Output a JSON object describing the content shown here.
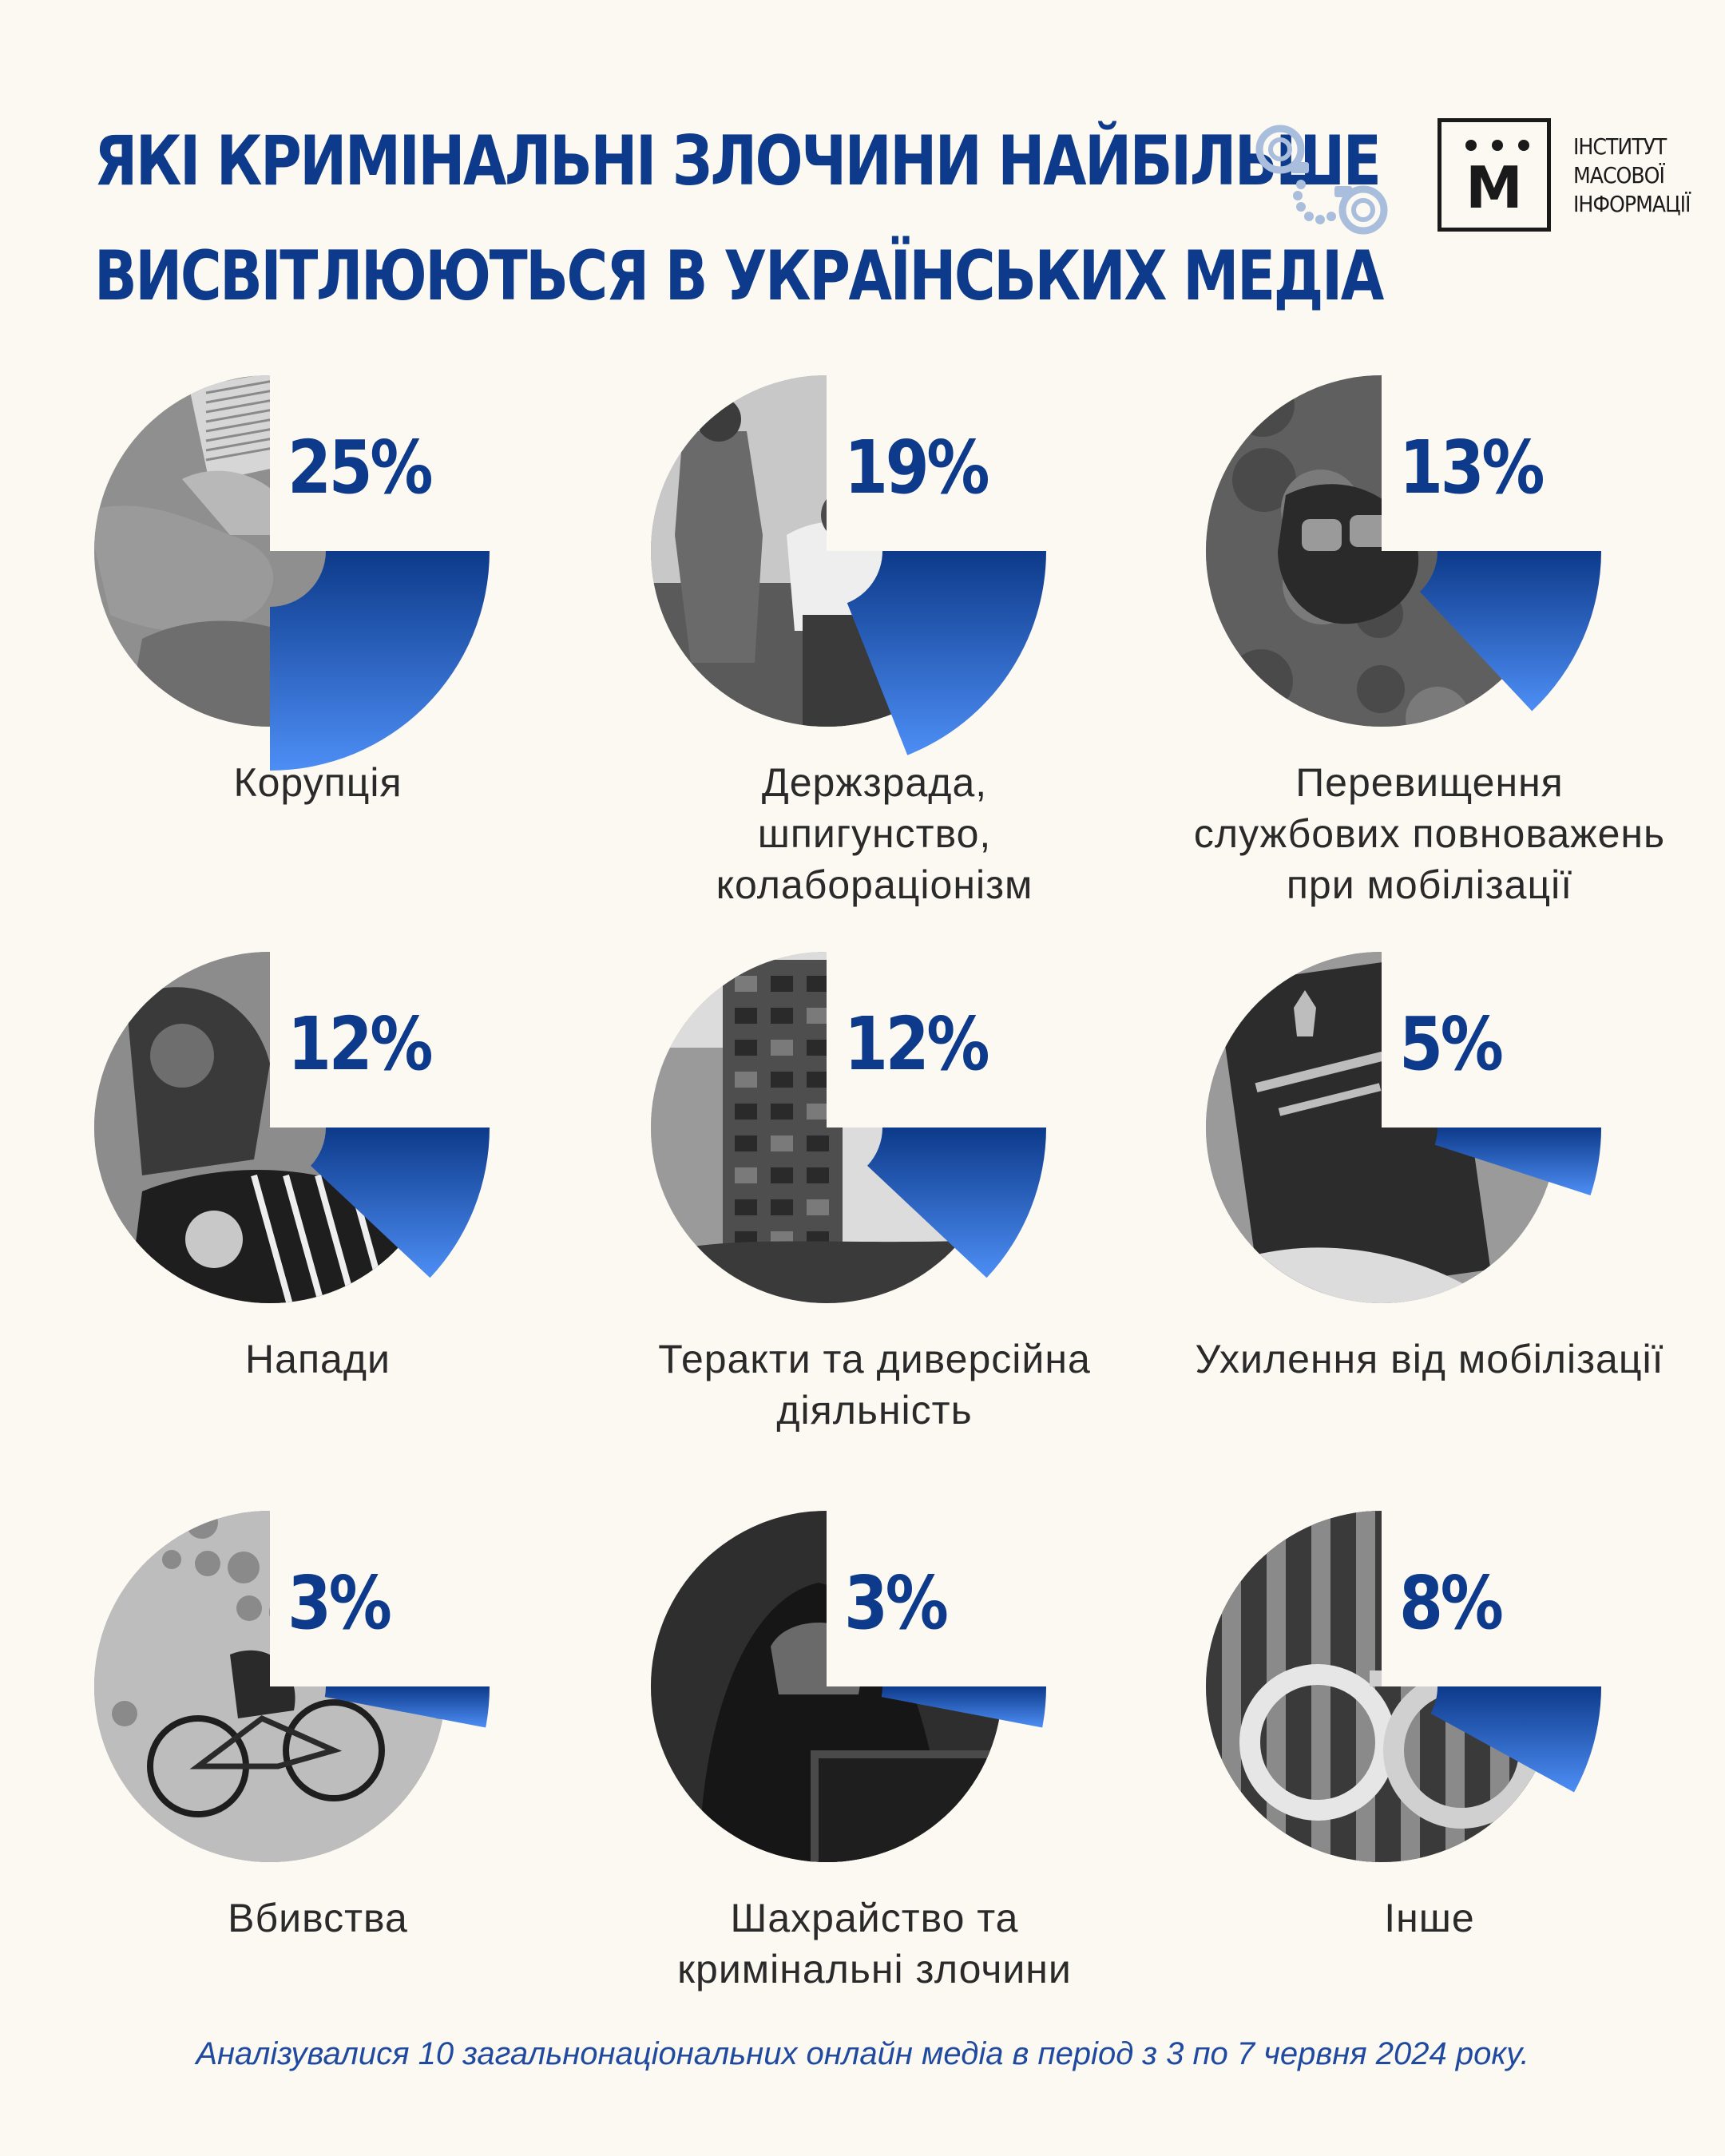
{
  "header": {
    "title_lines": [
      "ЯКІ КРИМІНАЛЬНІ ЗЛОЧИНИ НАЙБІЛЬШЕ",
      "ВИСВІТЛЮЮТЬСЯ В УКРАЇНСЬКИХ МЕДІА"
    ],
    "handcuffs_icon": "handcuffs-icon"
  },
  "logo": {
    "letter": "М",
    "text_lines": [
      "ІНСТИТУТ",
      "МАСОВОЇ",
      "ІНФОРМАЦІЇ"
    ]
  },
  "colors": {
    "title": "#0d3a8a",
    "wedge_dark": "#0d3a8a",
    "wedge_light": "#4d8ef5",
    "footnote": "#1f4aa0",
    "background": "#fcf9f2"
  },
  "chart_data": {
    "type": "pie",
    "unit": "%",
    "categories": [
      "Корупція",
      "Держзрада, шпигунство, колабораціонізм",
      "Перевищення службових повноважень при мобілізації",
      "Напади",
      "Теракти та диверсійна діяльність",
      "Ухилення від мобілізації",
      "Вбивства",
      "Шахрайство та кримінальні злочини",
      "Інше"
    ],
    "values": [
      25,
      19,
      13,
      12,
      12,
      5,
      3,
      3,
      8
    ],
    "items": [
      {
        "pct": "25%",
        "value": 25,
        "label_lines": [
          "Корупція"
        ],
        "image": "handshake-money-photo"
      },
      {
        "pct": "19%",
        "value": 19,
        "label_lines": [
          "Держзрада,",
          "шпигунство,",
          "колабораціонізм"
        ],
        "image": "detention-office-photo"
      },
      {
        "pct": "13%",
        "value": 13,
        "label_lines": [
          "Перевищення",
          "службових повноважень",
          "при мобілізації"
        ],
        "image": "soldier-glove-photo"
      },
      {
        "pct": "12%",
        "value": 12,
        "label_lines": [
          "Напади"
        ],
        "image": "assault-photo"
      },
      {
        "pct": "12%",
        "value": 12,
        "label_lines": [
          "Теракти та диверсійна",
          "діяльність"
        ],
        "image": "destroyed-building-photo"
      },
      {
        "pct": "5%",
        "value": 5,
        "label_lines": [
          "Ухилення від мобілізації"
        ],
        "image": "military-id-photo"
      },
      {
        "pct": "3%",
        "value": 3,
        "label_lines": [
          "Вбивства"
        ],
        "image": "fallen-bicycle-photo"
      },
      {
        "pct": "3%",
        "value": 3,
        "label_lines": [
          "Шахрайство та",
          "кримінальні злочини"
        ],
        "image": "hooded-hacker-photo"
      },
      {
        "pct": "8%",
        "value": 8,
        "label_lines": [
          "Інше"
        ],
        "image": "handcuffs-photo"
      }
    ]
  },
  "footnote": "Аналізувалися 10 загальнонаціональних онлайн медіа в період з 3 по 7 червня 2024 року."
}
